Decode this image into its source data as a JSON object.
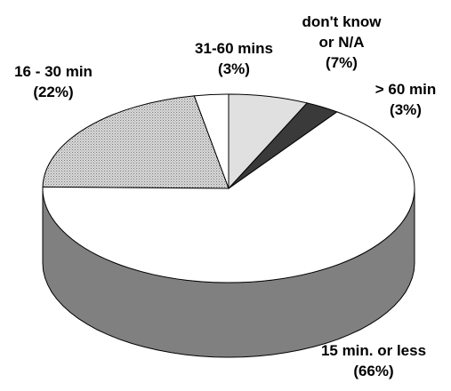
{
  "chart_data": {
    "type": "pie",
    "categories": [
      "15 min. or less",
      "16 - 30 min",
      "31-60 mins",
      "don't know or N/A",
      "> 60 min"
    ],
    "values": [
      66,
      22,
      3,
      7,
      3
    ],
    "labels": [
      {
        "lines": [
          "15 min. or less",
          "(66%)"
        ]
      },
      {
        "lines": [
          "16 - 30 min",
          "(22%)"
        ]
      },
      {
        "lines": [
          "31-60 mins",
          "(3%)"
        ]
      },
      {
        "lines": [
          "don't know",
          "or N/A",
          "(7%)"
        ]
      },
      {
        "lines": [
          "> 60 min",
          "(3%)"
        ]
      }
    ],
    "colors": {
      "15 min. or less": "#ffffff",
      "16 - 30 min": "#c4c4c4",
      "31-60 mins": "#ffffff",
      "don't know or N/A": "#e0e0e0",
      "> 60 min": "#3a3a3a",
      "side": "#808080"
    },
    "style": "3d-pie"
  }
}
